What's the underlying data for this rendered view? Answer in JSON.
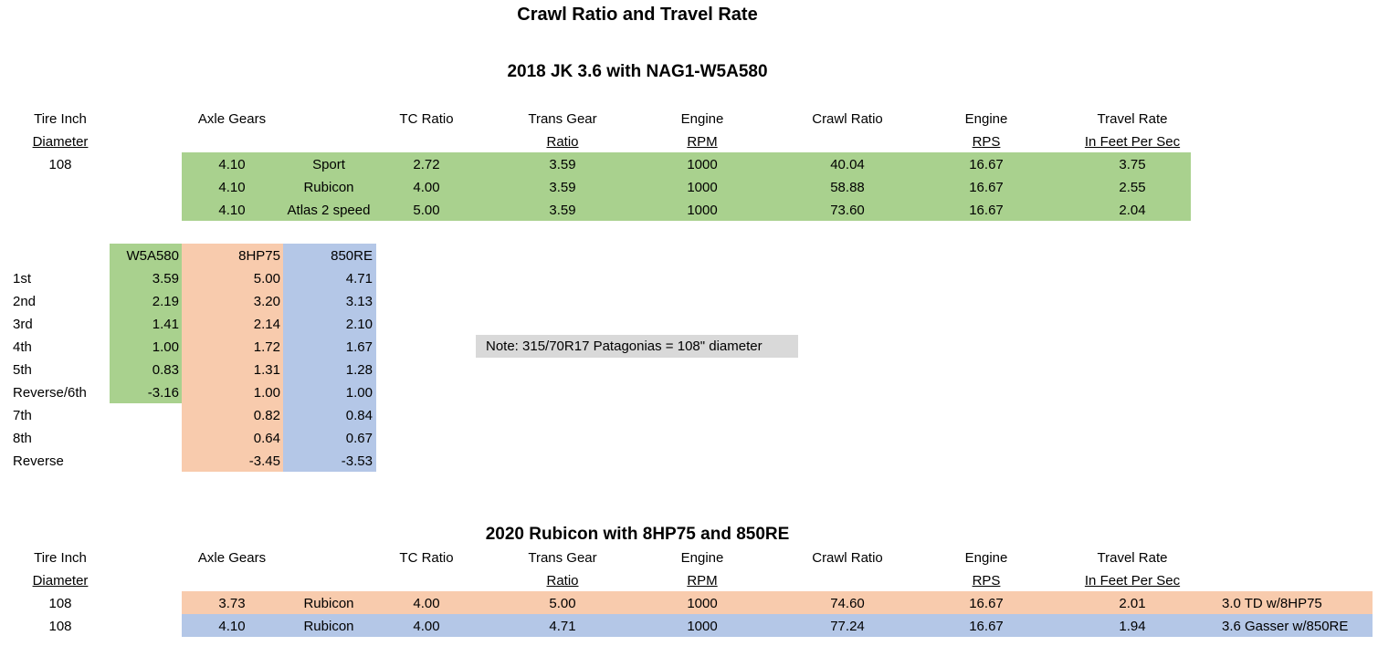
{
  "title": "Crawl Ratio and Travel Rate",
  "section1": {
    "heading": "2018 JK 3.6 with NAG1-W5A580",
    "headers": {
      "tire": [
        "Tire Inch",
        "Diameter"
      ],
      "axle": [
        "Axle Gears"
      ],
      "tc": [
        "TC Ratio"
      ],
      "trans": [
        "Trans Gear",
        "Ratio"
      ],
      "rpm": [
        "Engine",
        "RPM"
      ],
      "crawl": [
        "Crawl Ratio"
      ],
      "rps": [
        "Engine",
        "RPS"
      ],
      "travel": [
        "Travel Rate",
        "In Feet Per Sec"
      ]
    },
    "tire_value": "108",
    "rows": [
      {
        "axle": "4.10",
        "transfer": "Sport",
        "tc": "2.72",
        "trans": "3.59",
        "rpm": "1000",
        "crawl": "40.04",
        "rps": "16.67",
        "travel": "3.75"
      },
      {
        "axle": "4.10",
        "transfer": "Rubicon",
        "tc": "4.00",
        "trans": "3.59",
        "rpm": "1000",
        "crawl": "58.88",
        "rps": "16.67",
        "travel": "2.55"
      },
      {
        "axle": "4.10",
        "transfer": "Atlas 2 speed",
        "tc": "5.00",
        "trans": "3.59",
        "rpm": "1000",
        "crawl": "73.60",
        "rps": "16.67",
        "travel": "2.04"
      }
    ]
  },
  "gear_table": {
    "columns": [
      "W5A580",
      "8HP75",
      "850RE"
    ],
    "rows": [
      {
        "gear": "1st",
        "w5a580": "3.59",
        "hp75": "5.00",
        "re850": "4.71"
      },
      {
        "gear": "2nd",
        "w5a580": "2.19",
        "hp75": "3.20",
        "re850": "3.13"
      },
      {
        "gear": "3rd",
        "w5a580": "1.41",
        "hp75": "2.14",
        "re850": "2.10"
      },
      {
        "gear": "4th",
        "w5a580": "1.00",
        "hp75": "1.72",
        "re850": "1.67"
      },
      {
        "gear": "5th",
        "w5a580": "0.83",
        "hp75": "1.31",
        "re850": "1.28"
      },
      {
        "gear": "Reverse/6th",
        "w5a580": "-3.16",
        "hp75": "1.00",
        "re850": "1.00"
      },
      {
        "gear": "7th",
        "w5a580": "",
        "hp75": "0.82",
        "re850": "0.84"
      },
      {
        "gear": "8th",
        "w5a580": "",
        "hp75": "0.64",
        "re850": "0.67"
      },
      {
        "gear": "Reverse",
        "w5a580": "",
        "hp75": "-3.45",
        "re850": "-3.53"
      }
    ]
  },
  "note": "Note: 315/70R17 Patagonias = 108\" diameter",
  "section2": {
    "heading": "2020 Rubicon with 8HP75 and 850RE",
    "rows": [
      {
        "tire": "108",
        "axle": "3.73",
        "transfer": "Rubicon",
        "tc": "4.00",
        "trans": "5.00",
        "rpm": "1000",
        "crawl": "74.60",
        "rps": "16.67",
        "travel": "2.01",
        "label": "3.0 TD w/8HP75"
      },
      {
        "tire": "108",
        "axle": "4.10",
        "transfer": "Rubicon",
        "tc": "4.00",
        "trans": "4.71",
        "rpm": "1000",
        "crawl": "77.24",
        "rps": "16.67",
        "travel": "1.94",
        "label": "3.6 Gasser w/850RE"
      }
    ]
  },
  "colors": {
    "green": "#a9d18e",
    "orange": "#f8cbad",
    "blue": "#b4c7e7",
    "grey": "#d9d9d9"
  }
}
